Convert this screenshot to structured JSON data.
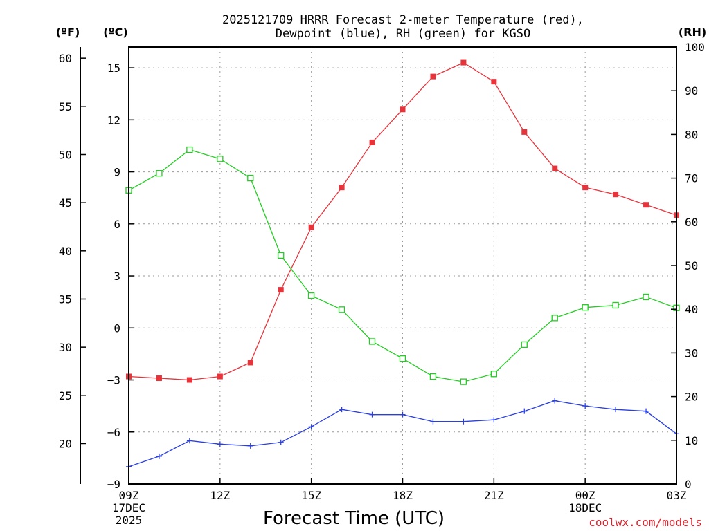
{
  "chart_data": {
    "type": "line",
    "title_line1": "2025121709 HRRR Forecast 2-meter Temperature (red),",
    "title_line2": "Dewpoint (blue), RH (green) for KGSO",
    "xlabel": "Forecast Time (UTC)",
    "credit": "coolwx.com/models",
    "units": {
      "fahrenheit": "(ºF)",
      "celsius": "(ºC)",
      "rh": "(RH)"
    },
    "x_hours": [
      9,
      10,
      11,
      12,
      13,
      14,
      15,
      16,
      17,
      18,
      19,
      20,
      21,
      22,
      23,
      24,
      25,
      26,
      27
    ],
    "x_ticks": [
      {
        "hour": 9,
        "lines": [
          "09Z",
          "17DEC",
          "2025"
        ]
      },
      {
        "hour": 12,
        "lines": [
          "12Z"
        ]
      },
      {
        "hour": 15,
        "lines": [
          "15Z"
        ]
      },
      {
        "hour": 18,
        "lines": [
          "18Z"
        ]
      },
      {
        "hour": 21,
        "lines": [
          "21Z"
        ]
      },
      {
        "hour": 24,
        "lines": [
          "00Z",
          "18DEC"
        ]
      },
      {
        "hour": 27,
        "lines": [
          "03Z"
        ]
      }
    ],
    "celsius_axis": {
      "min": -9,
      "max": 16.2,
      "ticks": [
        -9,
        -6,
        -3,
        0,
        3,
        6,
        9,
        12,
        15
      ]
    },
    "fahrenheit_axis": {
      "ticks": [
        20,
        25,
        30,
        35,
        40,
        45,
        50,
        55,
        60
      ]
    },
    "rh_axis": {
      "min": 0,
      "max": 100,
      "ticks": [
        0,
        10,
        20,
        30,
        40,
        50,
        60,
        70,
        80,
        90,
        100
      ]
    },
    "series": [
      {
        "name": "Temperature",
        "units": "C",
        "color": "#e8333a",
        "marker": "filled-square",
        "values": [
          -2.8,
          -2.9,
          -3.0,
          -2.8,
          -2.0,
          2.2,
          5.8,
          8.1,
          10.7,
          12.6,
          14.5,
          15.3,
          14.2,
          11.3,
          9.2,
          8.1,
          7.7,
          7.1,
          6.5
        ]
      },
      {
        "name": "Dewpoint",
        "units": "C",
        "color": "#2a3fe0",
        "marker": "plus",
        "values": [
          -8.0,
          -7.4,
          -6.5,
          -6.7,
          -6.8,
          -6.6,
          -5.7,
          -4.7,
          -5.0,
          -5.0,
          -5.4,
          -5.4,
          -5.3,
          -4.8,
          -4.2,
          -4.5,
          -4.7,
          -4.8,
          -6.1
        ]
      },
      {
        "name": "RH",
        "units": "%",
        "color": "#22cc22",
        "marker": "open-square",
        "values": [
          67.2,
          71.1,
          76.5,
          74.4,
          70.0,
          52.3,
          43.1,
          39.9,
          32.6,
          28.7,
          24.6,
          23.4,
          25.2,
          31.9,
          38.0,
          40.4,
          40.9,
          42.8,
          40.3
        ]
      }
    ]
  }
}
